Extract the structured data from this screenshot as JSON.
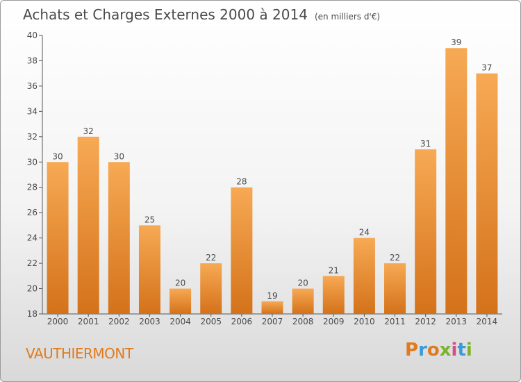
{
  "title": "Achats et Charges Externes 2000 à 2014",
  "unit": "(en milliers d'€)",
  "commune": "VAUTHIERMONT",
  "logo": {
    "text": "Proxiti",
    "colors": [
      "#e07a1c",
      "#3b9ad9",
      "#e07a1c",
      "#7bb32e",
      "#d94a8a",
      "#3b9ad9",
      "#7bb32e"
    ]
  },
  "colors": {
    "bar_top": "#f7a954",
    "bar_bottom": "#d4721a",
    "text": "#4a4a4a",
    "commune": "#e07a1c"
  },
  "chart_data": {
    "type": "bar",
    "categories": [
      "2000",
      "2001",
      "2002",
      "2003",
      "2004",
      "2005",
      "2006",
      "2007",
      "2008",
      "2009",
      "2010",
      "2011",
      "2012",
      "2013",
      "2014"
    ],
    "values": [
      30,
      32,
      30,
      25,
      20,
      22,
      28,
      19,
      20,
      21,
      24,
      22,
      31,
      39,
      37
    ],
    "ylim": [
      18,
      40
    ],
    "yticks": [
      18,
      20,
      22,
      24,
      26,
      28,
      30,
      32,
      34,
      36,
      38,
      40
    ],
    "grid": false,
    "legend": "none"
  }
}
